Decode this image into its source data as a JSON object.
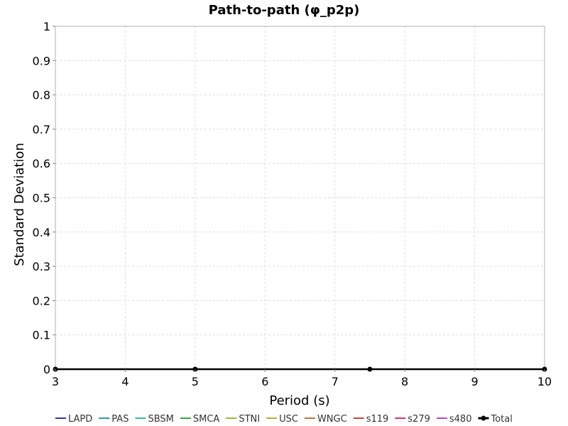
{
  "chart_data": {
    "type": "line",
    "title": "Path-to-path (φ_p2p)",
    "xlabel": "Period (s)",
    "ylabel": "Standard Deviation",
    "xlim": [
      3,
      10
    ],
    "ylim": [
      0,
      1
    ],
    "x_ticks": [
      "3",
      "4",
      "5",
      "6",
      "7",
      "8",
      "9",
      "10"
    ],
    "y_ticks": [
      "0",
      "0.1",
      "0.2",
      "0.3",
      "0.4",
      "0.5",
      "0.6",
      "0.7",
      "0.8",
      "0.9",
      "1"
    ],
    "grid": true,
    "legend_position": "bottom",
    "series": [
      {
        "name": "LAPD",
        "color": "#3333aa",
        "x": [
          3,
          5,
          7.5,
          10
        ],
        "values": [
          0,
          0,
          0,
          0
        ]
      },
      {
        "name": "PAS",
        "color": "#3399aa",
        "x": [
          3,
          5,
          7.5,
          10
        ],
        "values": [
          0,
          0,
          0,
          0
        ]
      },
      {
        "name": "SBSM",
        "color": "#33bbaa",
        "x": [
          3,
          5,
          7.5,
          10
        ],
        "values": [
          0,
          0,
          0,
          0
        ]
      },
      {
        "name": "SMCA",
        "color": "#33aa33",
        "x": [
          3,
          5,
          7.5,
          10
        ],
        "values": [
          0,
          0,
          0,
          0
        ]
      },
      {
        "name": "STNI",
        "color": "#99bb33",
        "x": [
          3,
          5,
          7.5,
          10
        ],
        "values": [
          0,
          0,
          0,
          0
        ]
      },
      {
        "name": "USC",
        "color": "#bbaa33",
        "x": [
          3,
          5,
          7.5,
          10
        ],
        "values": [
          0,
          0,
          0,
          0
        ]
      },
      {
        "name": "WNGC",
        "color": "#bb7733",
        "x": [
          3,
          5,
          7.5,
          10
        ],
        "values": [
          0,
          0,
          0,
          0
        ]
      },
      {
        "name": "s119",
        "color": "#cc4433",
        "x": [
          3,
          5,
          7.5,
          10
        ],
        "values": [
          0,
          0,
          0,
          0
        ]
      },
      {
        "name": "s279",
        "color": "#dd3366",
        "x": [
          3,
          5,
          7.5,
          10
        ],
        "values": [
          0,
          0,
          0,
          0
        ]
      },
      {
        "name": "s480",
        "color": "#bb44cc",
        "x": [
          3,
          5,
          7.5,
          10
        ],
        "values": [
          0,
          0,
          0,
          0
        ]
      },
      {
        "name": "Total",
        "color": "#000000",
        "markers": true,
        "x": [
          3,
          5,
          7.5,
          10
        ],
        "values": [
          0,
          0,
          0,
          0
        ]
      }
    ]
  }
}
